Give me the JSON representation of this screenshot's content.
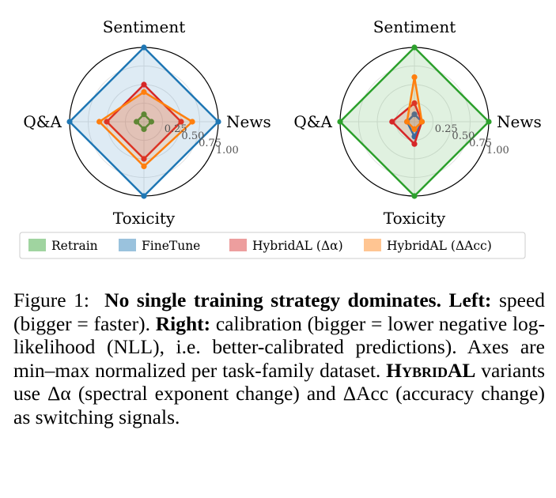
{
  "colors": {
    "Retrain": "#2ca02c",
    "FineTune": "#1f77b4",
    "HybridAL_alpha": "#d62728",
    "HybridAL_acc": "#ff7f0e"
  },
  "chart_data": [
    {
      "type": "radar",
      "axes": [
        "Sentiment",
        "News",
        "Toxicity",
        "Q&A"
      ],
      "rticks": [
        "0.25",
        "0.50",
        "0.75",
        "1.00"
      ],
      "rlim": [
        0,
        1
      ],
      "series": [
        {
          "name": "Retrain",
          "color_key": "Retrain",
          "values": [
            0.1,
            0.1,
            0.1,
            0.1
          ]
        },
        {
          "name": "FineTune",
          "color_key": "FineTune",
          "values": [
            1.0,
            1.0,
            1.0,
            1.0
          ]
        },
        {
          "name": "HybridAL (Δα)",
          "color_key": "HybridAL_alpha",
          "values": [
            0.5,
            0.5,
            0.5,
            0.5
          ]
        },
        {
          "name": "HybridAL (ΔAcc)",
          "color_key": "HybridAL_acc",
          "values": [
            0.4,
            0.65,
            0.6,
            0.6
          ]
        }
      ]
    },
    {
      "type": "radar",
      "axes": [
        "Sentiment",
        "News",
        "Toxicity",
        "Q&A"
      ],
      "rticks": [
        "0.25",
        "0.50",
        "0.75",
        "1.00"
      ],
      "rlim": [
        0,
        1
      ],
      "series": [
        {
          "name": "Retrain",
          "color_key": "Retrain",
          "values": [
            1.0,
            1.0,
            1.0,
            1.0
          ]
        },
        {
          "name": "FineTune",
          "color_key": "FineTune",
          "values": [
            0.1,
            0.1,
            0.2,
            0.1
          ]
        },
        {
          "name": "HybridAL (Δα)",
          "color_key": "HybridAL_alpha",
          "values": [
            0.25,
            0.1,
            0.3,
            0.3
          ]
        },
        {
          "name": "HybridAL (ΔAcc)",
          "color_key": "HybridAL_acc",
          "values": [
            0.6,
            0.1,
            0.1,
            0.1
          ]
        }
      ]
    }
  ],
  "legend": [
    {
      "label": "Retrain",
      "color_key": "Retrain"
    },
    {
      "label": "FineTune",
      "color_key": "FineTune"
    },
    {
      "label": "HybridAL (Δα)",
      "color_key": "HybridAL_alpha"
    },
    {
      "label": "HybridAL (ΔAcc)",
      "color_key": "HybridAL_acc"
    }
  ],
  "caption": {
    "fig_label": "Figure 1:",
    "bold_title": "No single training strategy dominates.",
    "left_label": "Left:",
    "left_text": "speed (bigger = faster).",
    "right_label": "Right:",
    "right_text": "calibration (bigger = lower negative log-likelihood (NLL), i.e. better-calibrated predictions). Axes are min–max normalized per task-family dataset.",
    "method_name": "HybridAL",
    "tail_text": "variants use Δα (spectral exponent change) and ΔAcc (accuracy change) as switching signals."
  }
}
